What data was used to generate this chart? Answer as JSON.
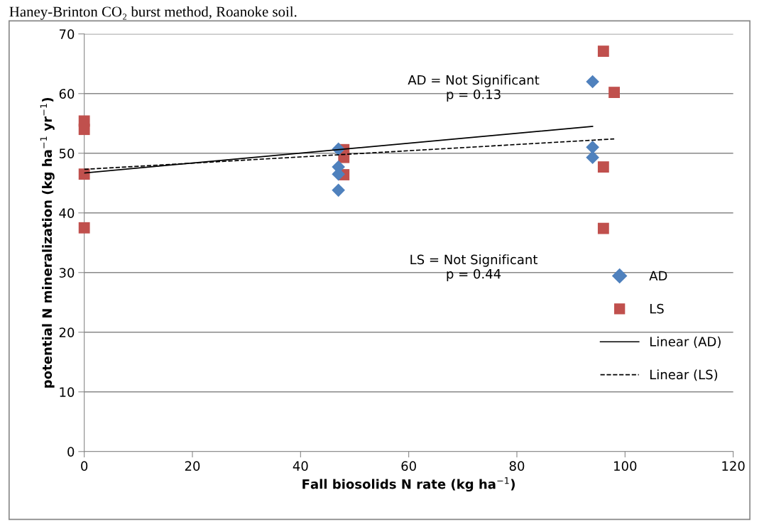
{
  "chart_data": {
    "type": "scatter",
    "title": "Haney-Brinton CO₂ burst method, Roanoke soil.",
    "xlabel": "Fall biosolids N rate (kg ha$^{−1}$)",
    "ylabel": "potential N mineralization (kg ha$^{−1}$ yr$^{−1}$)",
    "xlim": [
      0,
      120
    ],
    "xticks": [
      0,
      20,
      40,
      60,
      80,
      100,
      120
    ],
    "ylim": [
      0,
      70
    ],
    "yticks": [
      0,
      10,
      20,
      30,
      40,
      50,
      60,
      70
    ],
    "grid": "y",
    "legend": "right",
    "annotations": [
      "AD = Not Significant\np = 0.13",
      "LS = Not Significant\np = 0.44"
    ],
    "series": [
      {
        "name": "AD",
        "marker": "diamond",
        "color": "#4f81bd",
        "x": [
          47,
          47,
          47,
          47,
          94,
          94,
          94
        ],
        "values": [
          50.7,
          47.7,
          46.5,
          43.8,
          62.0,
          51.0,
          49.3
        ]
      },
      {
        "name": "LS",
        "marker": "square",
        "color": "#c0504d",
        "x": [
          0,
          0,
          0,
          0,
          48,
          48,
          48,
          96,
          96,
          96,
          98
        ],
        "values": [
          55.4,
          54.0,
          46.5,
          37.5,
          50.6,
          49.3,
          46.4,
          67.1,
          47.7,
          37.4,
          60.2
        ]
      },
      {
        "name": "Linear (AD)",
        "type": "line",
        "line_style": "solid",
        "color": "#000000",
        "x": [
          0,
          94
        ],
        "values": [
          46.7,
          54.5
        ]
      },
      {
        "name": "Linear (LS)",
        "type": "line",
        "line_style": "dashed",
        "color": "#000000",
        "x": [
          0,
          98
        ],
        "values": [
          47.3,
          52.4
        ]
      }
    ]
  }
}
